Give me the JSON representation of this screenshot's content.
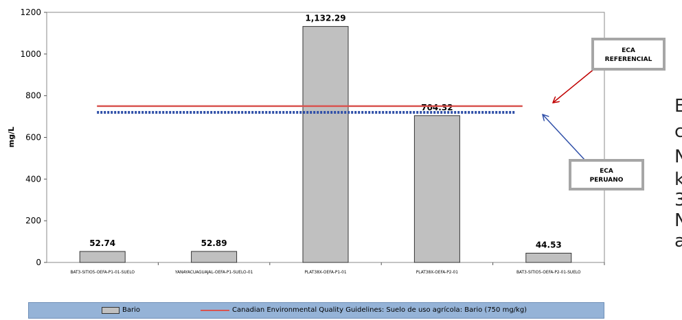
{
  "chart_data": {
    "type": "bar",
    "ylabel": "mg/L",
    "ylim": [
      0,
      1200
    ],
    "yticks": [
      0,
      200,
      400,
      600,
      800,
      1000,
      1200
    ],
    "categories": [
      "BAT3-SITIO5-OEFA-P1-01-SUELO",
      "YANAYACUAGUAJAL-OEFA-P1-SUELO-01",
      "PLAT38X-OEFA-P1-01",
      "PLAT38X-OEFA-P2-01",
      "BAT3-SITIO5-OEFA-P2-01-SUELO"
    ],
    "series": [
      {
        "name": "Bario",
        "values": [
          52.74,
          52.89,
          1132.29,
          704.32,
          44.53
        ]
      }
    ],
    "data_labels": [
      "52.74",
      "52.89",
      "1,132.29",
      "704.32",
      "44.53"
    ],
    "reference_lines": [
      {
        "name": "Canadian Environmental Quality Guidelines: Suelo de uso agrícola: Bario (750 mg/kg)",
        "value": 750,
        "style": "solid",
        "color": "#d9534f"
      },
      {
        "value": 720,
        "style": "dotted",
        "color": "#2f4fa8"
      }
    ],
    "legend_position": "bottom",
    "grid": false
  },
  "callouts": {
    "referencial": {
      "line1": "ECA",
      "line2": "REFERENCIAL",
      "arrow_color": "#c00000"
    },
    "peruano": {
      "line1": "ECA",
      "line2": "PERUANO",
      "arrow_color": "#2f4fa8"
    }
  },
  "legend": {
    "bar_label": "Bario",
    "line_label": "Canadian Environmental Quality Guidelines: Suelo de uso agrícola: Bario (750 mg/kg)"
  },
  "side_text_fragments": [
    "E",
    "c",
    "N",
    "k",
    "3",
    "N",
    "a"
  ],
  "colors": {
    "bar_fill": "#c0c0c0",
    "legend_bg": "#95b3d7"
  }
}
